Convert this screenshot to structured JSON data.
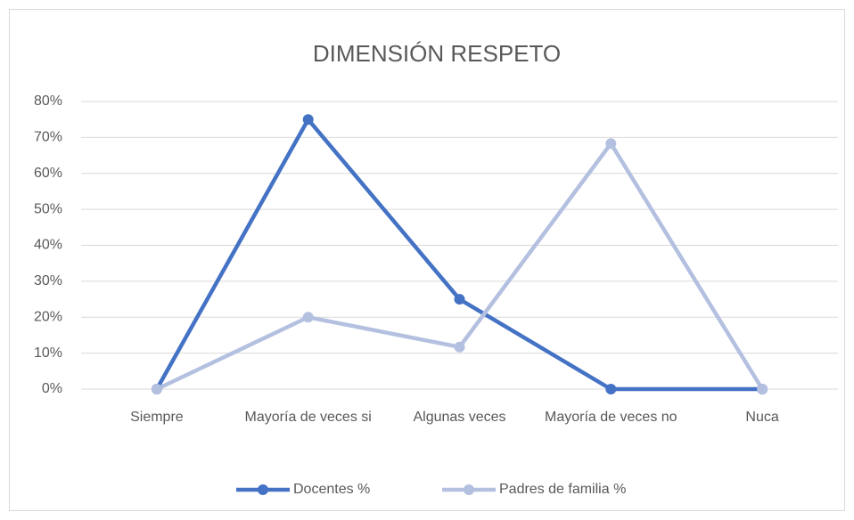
{
  "chart_data": {
    "type": "line",
    "title": "DIMENSIÓN RESPETO",
    "categories": [
      "Siempre",
      "Mayoría de veces si",
      "Algunas veces",
      "Mayoría de veces no",
      "Nuca"
    ],
    "series": [
      {
        "name": "Docentes %",
        "color": "#4472c4",
        "values": [
          0,
          75,
          25,
          0,
          0
        ]
      },
      {
        "name": "Padres de familia %",
        "color": "#b4c0e0",
        "values": [
          0,
          20,
          11.7,
          68.3,
          0
        ]
      }
    ],
    "ylim": [
      0,
      80
    ],
    "yticks": [
      {
        "value": 0,
        "label": "0%"
      },
      {
        "value": 10,
        "label": "10%"
      },
      {
        "value": 20,
        "label": "20%"
      },
      {
        "value": 30,
        "label": "30%"
      },
      {
        "value": 40,
        "label": "40%"
      },
      {
        "value": 50,
        "label": "50%"
      },
      {
        "value": 60,
        "label": "60%"
      },
      {
        "value": 70,
        "label": "70%"
      },
      {
        "value": 80,
        "label": "80%"
      }
    ],
    "grid": true,
    "legend": "bottom"
  }
}
